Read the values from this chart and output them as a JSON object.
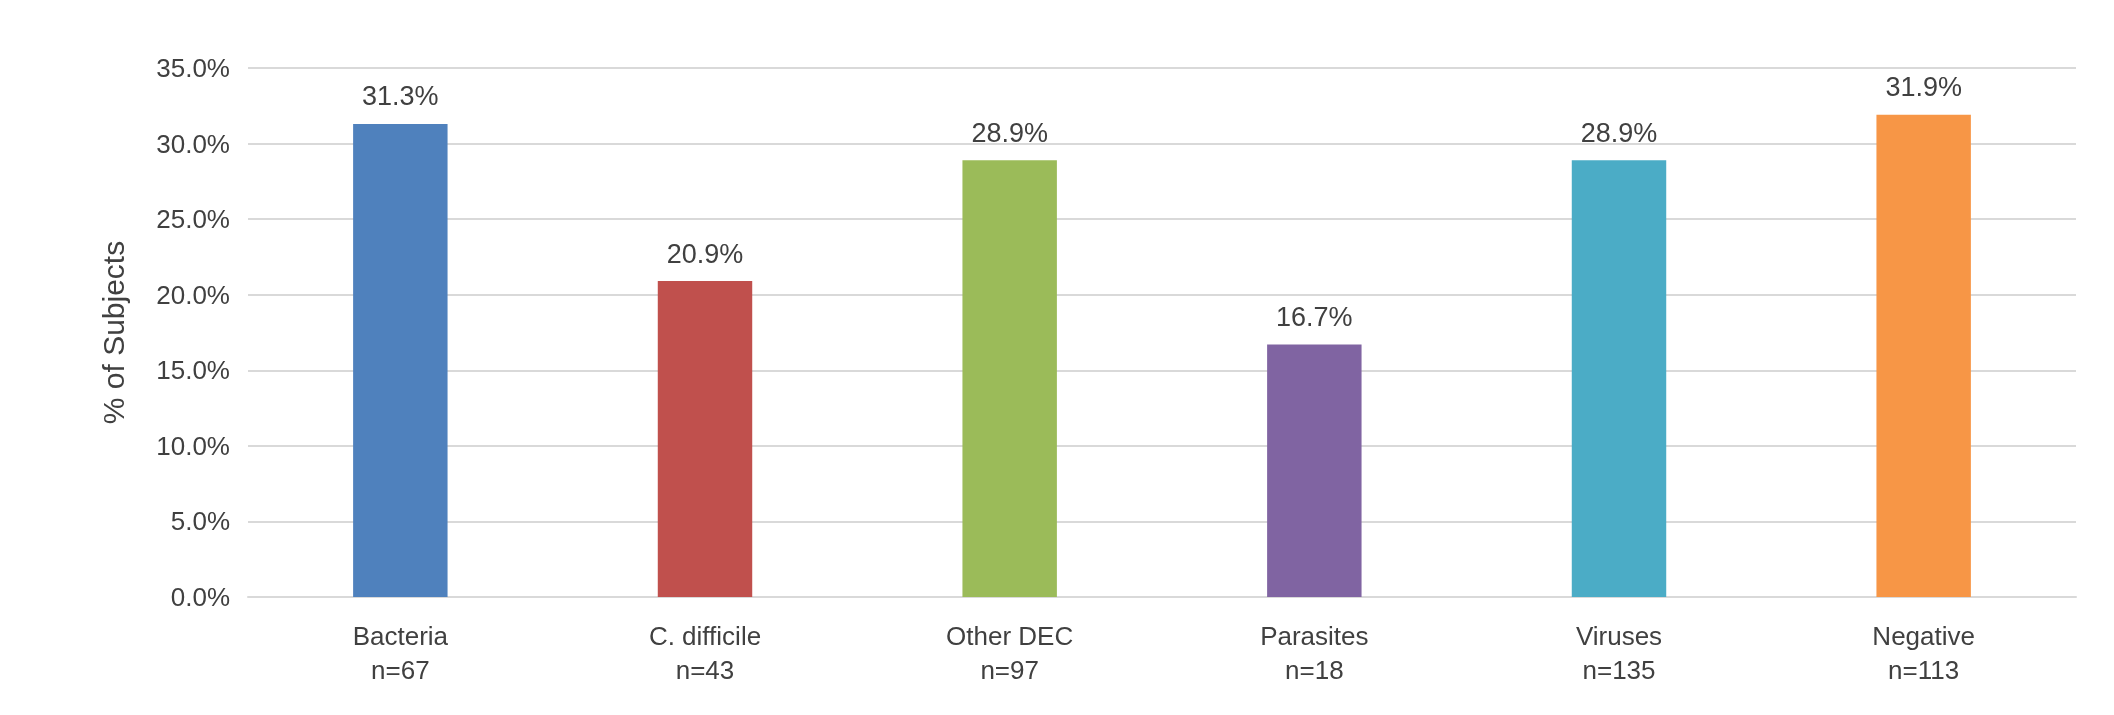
{
  "chart_data": {
    "type": "bar",
    "ylabel": "% of Subjects",
    "categories": [
      "Bacteria\nn=67",
      "C. difficile\nn=43",
      "Other DEC\nn=97",
      "Parasites\nn=18",
      "Viruses\nn=135",
      "Negative\nn=113"
    ],
    "values": [
      31.3,
      20.9,
      28.9,
      16.7,
      28.9,
      31.9
    ],
    "colors": [
      "#4f81bd",
      "#c0504d",
      "#9bbb59",
      "#8064a2",
      "#4bacc6",
      "#f79646"
    ],
    "value_labels": [
      "31.3%",
      "20.9%",
      "28.9%",
      "16.7%",
      "28.9%",
      "31.9%"
    ],
    "ylim": [
      0,
      35
    ],
    "yticks": [
      {
        "value": 0,
        "label": "0.0%"
      },
      {
        "value": 5,
        "label": "5.0%"
      },
      {
        "value": 10,
        "label": "10.0%"
      },
      {
        "value": 15,
        "label": "15.0%"
      },
      {
        "value": 20,
        "label": "20.0%"
      },
      {
        "value": 25,
        "label": "25.0%"
      },
      {
        "value": 30,
        "label": "30.0%"
      },
      {
        "value": 35,
        "label": "35.0%"
      }
    ],
    "grid": "y"
  }
}
